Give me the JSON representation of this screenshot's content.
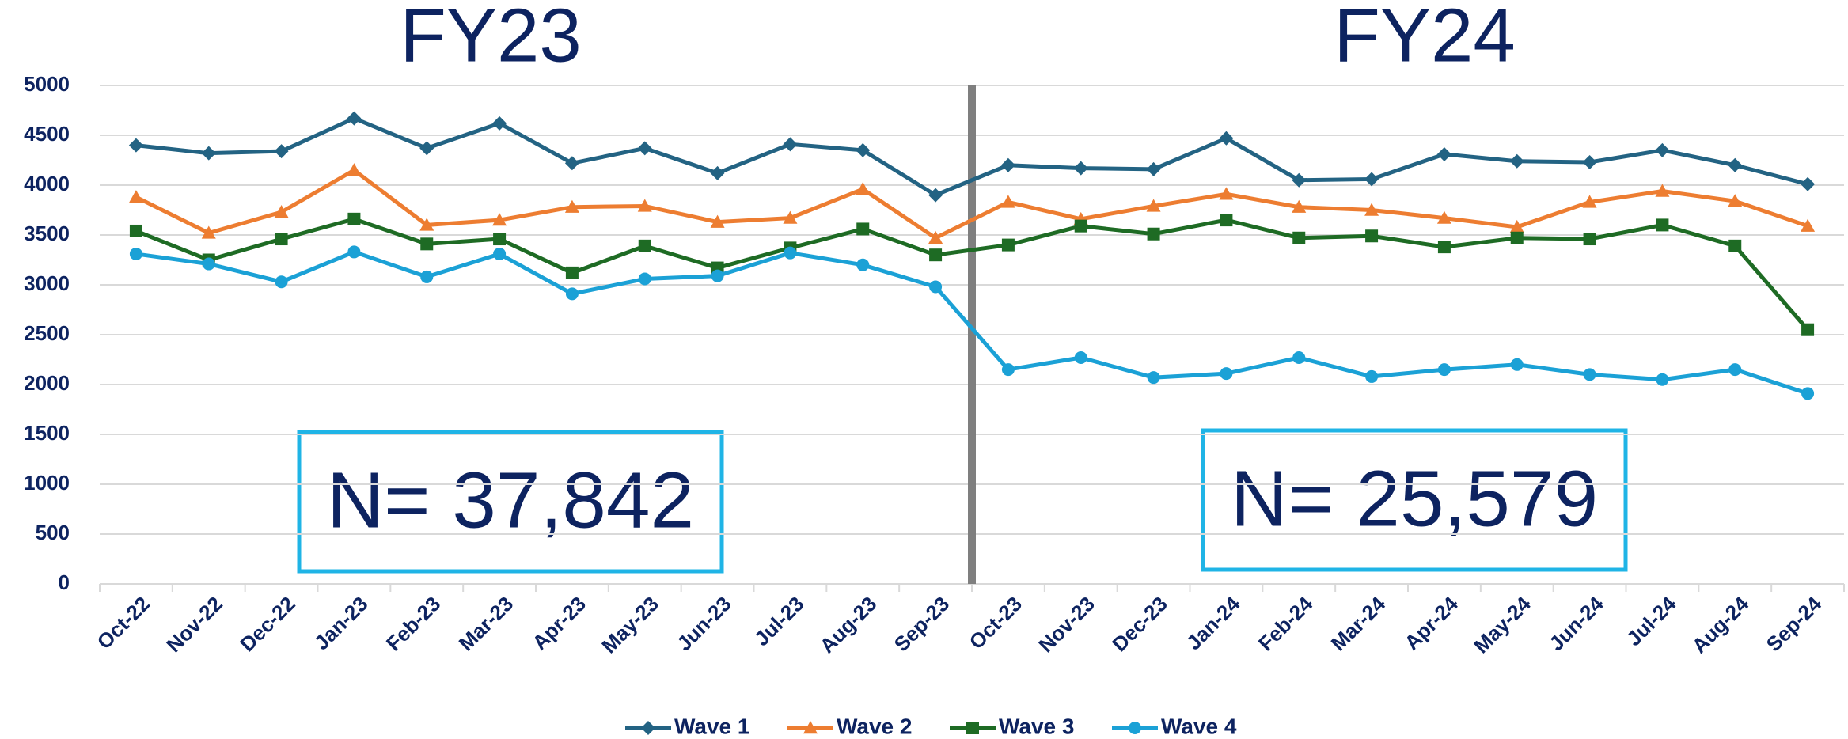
{
  "chart_data": {
    "type": "line",
    "annotations": [
      "FY23",
      "FY24",
      "N= 37,842",
      "N= 25,579"
    ],
    "categories": [
      "Oct-22",
      "Nov-22",
      "Dec-22",
      "Jan-23",
      "Feb-23",
      "Mar-23",
      "Apr-23",
      "May-23",
      "Jun-23",
      "Jul-23",
      "Aug-23",
      "Sep-23",
      "Oct-23",
      "Nov-23",
      "Dec-23",
      "Jan-24",
      "Feb-24",
      "Mar-24",
      "Apr-24",
      "May-24",
      "Jun-24",
      "Jul-24",
      "Aug-24",
      "Sep-24"
    ],
    "series": [
      {
        "name": "Wave 1",
        "color": "#236383",
        "marker": "diamond",
        "values": [
          4400,
          4320,
          4340,
          4670,
          4370,
          4620,
          4220,
          4370,
          4120,
          4410,
          4350,
          3900,
          4200,
          4170,
          4160,
          4470,
          4050,
          4060,
          4310,
          4240,
          4230,
          4350,
          4200,
          4010
        ]
      },
      {
        "name": "Wave 2",
        "color": "#ed7d31",
        "marker": "triangle",
        "values": [
          3880,
          3520,
          3730,
          4150,
          3600,
          3650,
          3780,
          3790,
          3630,
          3670,
          3960,
          3470,
          3830,
          3660,
          3790,
          3910,
          3780,
          3750,
          3670,
          3580,
          3830,
          3940,
          3840,
          3590
        ]
      },
      {
        "name": "Wave 3",
        "color": "#1e6b24",
        "marker": "square",
        "values": [
          3540,
          3250,
          3460,
          3660,
          3410,
          3460,
          3120,
          3390,
          3170,
          3370,
          3560,
          3300,
          3400,
          3590,
          3510,
          3650,
          3470,
          3490,
          3380,
          3470,
          3460,
          3600,
          3390,
          2550
        ]
      },
      {
        "name": "Wave 4",
        "color": "#1ba1d6",
        "marker": "circle",
        "values": [
          3310,
          3210,
          3030,
          3330,
          3080,
          3310,
          2910,
          3060,
          3090,
          3320,
          3200,
          2980,
          2150,
          2270,
          2070,
          2110,
          2270,
          2080,
          2150,
          2200,
          2100,
          2050,
          2150,
          1910
        ]
      }
    ],
    "ylim": [
      0,
      5000
    ],
    "yticks": [
      0,
      500,
      1000,
      1500,
      2000,
      2500,
      3000,
      3500,
      4000,
      4500,
      5000
    ],
    "grid": true,
    "legend": "bottom"
  }
}
